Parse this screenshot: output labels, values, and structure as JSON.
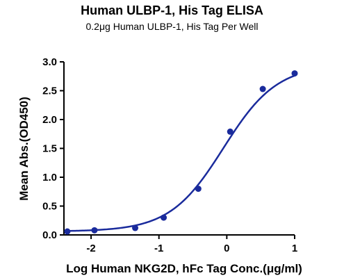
{
  "chart_data": {
    "type": "scatter",
    "title": "Human ULBP-1, His Tag ELISA",
    "subtitle": "0.2μg Human ULBP-1, His Tag Per Well",
    "xlabel": "Log Human NKG2D, hFc Tag Conc.(μg/ml)",
    "ylabel": "Mean Abs.(OD450)",
    "xlim": [
      -2.4,
      1.0
    ],
    "ylim": [
      0.0,
      3.0
    ],
    "xticks": [
      -2,
      -1,
      0,
      1
    ],
    "xtick_labels": [
      "-2",
      "-1",
      "0",
      "1"
    ],
    "yticks": [
      0.0,
      0.5,
      1.0,
      1.5,
      2.0,
      2.5,
      3.0
    ],
    "ytick_labels": [
      "0.0",
      "0.5",
      "1.0",
      "1.5",
      "2.0",
      "2.5",
      "3.0"
    ],
    "grid": false,
    "color": "#1a2b9c",
    "series": [
      {
        "x": [
          -2.35,
          -1.95,
          -1.35,
          -0.93,
          -0.42,
          0.05,
          0.53,
          1.0
        ],
        "y": [
          0.06,
          0.08,
          0.12,
          0.3,
          0.8,
          1.79,
          2.53,
          2.8
        ]
      }
    ],
    "fit_curve": {
      "type": "4PL",
      "bottom": 0.06,
      "top": 2.95,
      "logEC50": -0.05,
      "hill": 1.1
    }
  }
}
